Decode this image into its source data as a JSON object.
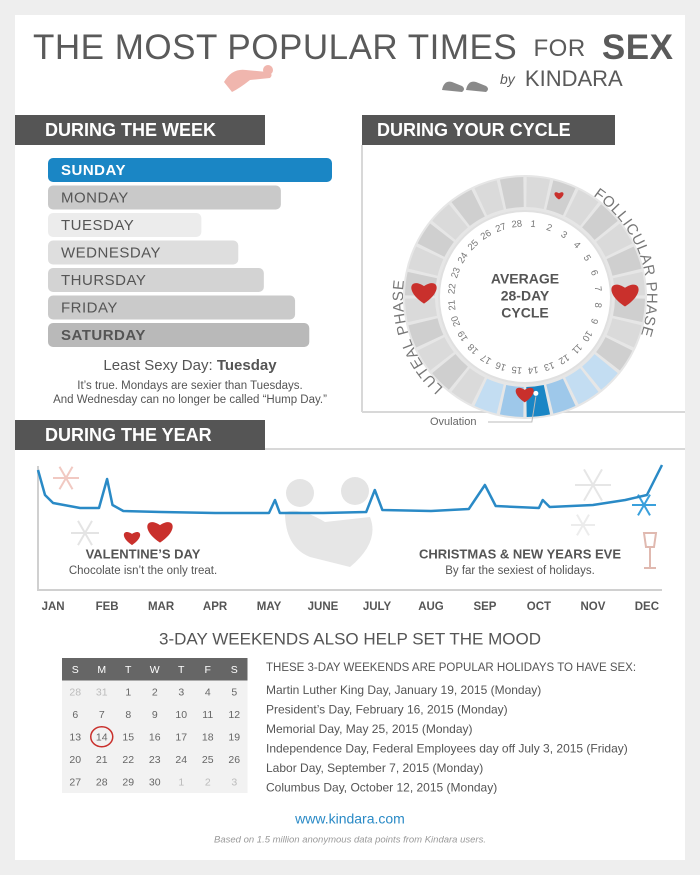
{
  "header": {
    "title": "THE MOST POPULAR TIMES",
    "for": "FOR",
    "sex": "SEX",
    "by": "by",
    "brand": "KINDARA"
  },
  "week": {
    "heading": "DURING THE WEEK",
    "xlim": [
      0,
      100
    ],
    "days": [
      {
        "label": "SUNDAY",
        "value": 100
      },
      {
        "label": "MONDAY",
        "value": 82
      },
      {
        "label": "TUESDAY",
        "value": 54
      },
      {
        "label": "WEDNESDAY",
        "value": 67
      },
      {
        "label": "THURSDAY",
        "value": 76
      },
      {
        "label": "FRIDAY",
        "value": 87
      },
      {
        "label": "SATURDAY",
        "value": 92
      }
    ],
    "least": {
      "label": "Least Sexy Day:",
      "day": "Tuesday"
    },
    "notes": [
      "It’s true. Mondays are sexier than Tuesdays.",
      "And Wednesday can no longer be called “Hump Day.”"
    ]
  },
  "cycle": {
    "heading": "DURING YOUR CYCLE",
    "center": [
      "AVERAGE",
      "28-DAY",
      "CYCLE"
    ],
    "follicular": "FOLLICULAR PHASE",
    "luteal": "LUTEAL PHASE",
    "days": [
      1,
      2,
      3,
      4,
      5,
      6,
      7,
      8,
      9,
      10,
      11,
      12,
      13,
      14,
      15,
      16,
      17,
      18,
      19,
      20,
      21,
      22,
      23,
      24,
      25,
      26,
      27,
      28
    ],
    "ovulation": "Ovulation"
  },
  "year": {
    "heading": "DURING THE YEAR",
    "months": [
      "JAN",
      "FEB",
      "MAR",
      "APR",
      "MAY",
      "JUNE",
      "JULY",
      "AUG",
      "SEP",
      "OCT",
      "NOV",
      "DEC"
    ],
    "chart": {
      "x": [
        -0.28,
        -0.15,
        0,
        0.5,
        0.85,
        1,
        1.1,
        1.3,
        2,
        3,
        4,
        4.11,
        4.2,
        5,
        5.8,
        5.96,
        6.1,
        7,
        7.7,
        8,
        8.2,
        9,
        9.07,
        9.2,
        10,
        10.6,
        11,
        11.28
      ],
      "values": [
        90,
        40,
        24,
        14,
        14,
        72,
        20,
        8,
        6,
        4,
        4,
        30,
        4,
        4,
        6,
        50,
        10,
        8,
        12,
        60,
        18,
        14,
        30,
        16,
        20,
        30,
        40,
        100
      ],
      "xlim": [
        -0.28,
        11.28
      ],
      "ylim": [
        0,
        100
      ],
      "color": "#2a8ac6"
    },
    "annotations": [
      {
        "title": "VALENTINE’S DAY",
        "text": "Chocolate isn’t the only treat."
      },
      {
        "title": "CHRISTMAS & NEW YEARS EVE",
        "text": "By far the sexiest of holidays."
      }
    ]
  },
  "weekends": {
    "heading": "3-DAY WEEKENDS ALSO HELP SET THE MOOD",
    "calendar": {
      "weekdays": [
        "S",
        "M",
        "T",
        "W",
        "T",
        "F",
        "S"
      ],
      "rows": [
        [
          28,
          31,
          1,
          2,
          3,
          4,
          5
        ],
        [
          6,
          7,
          8,
          9,
          10,
          11,
          12
        ],
        [
          13,
          14,
          15,
          16,
          17,
          18,
          19
        ],
        [
          20,
          21,
          22,
          23,
          24,
          25,
          26
        ],
        [
          27,
          28,
          29,
          30,
          1,
          2,
          3
        ]
      ]
    },
    "list_heading": "THESE 3-DAY WEEKENDS ARE POPULAR HOLIDAYS TO HAVE SEX:",
    "items": [
      "Martin Luther King Day, January 19, 2015 (Monday)",
      "President’s Day, February 16, 2015 (Monday)",
      "Memorial Day, May 25, 2015 (Monday)",
      "Independence Day, Federal Employees day off July 3, 2015 (Friday)",
      "Labor Day, September 7, 2015 (Monday)",
      "Columbus Day, October 12, 2015 (Monday)"
    ]
  },
  "footer": {
    "url": "www.kindara.com",
    "note": "Based on 1.5 million anonymous data points from Kindara users."
  }
}
